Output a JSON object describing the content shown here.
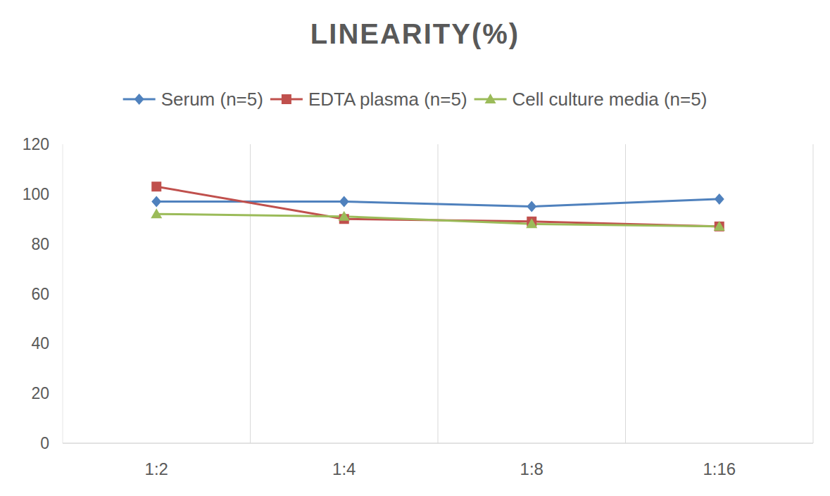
{
  "chart_data": {
    "type": "line",
    "title": "LINEARITY(%)",
    "categories": [
      "1:2",
      "1:4",
      "1:8",
      "1:16"
    ],
    "series": [
      {
        "name": "Serum (n=5)",
        "color": "#4f81bd",
        "marker": "diamond",
        "values": [
          97,
          97,
          95,
          98
        ]
      },
      {
        "name": "EDTA plasma (n=5)",
        "color": "#c0504d",
        "marker": "square",
        "values": [
          103,
          90,
          89,
          87
        ]
      },
      {
        "name": "Cell culture media (n=5)",
        "color": "#9bbb59",
        "marker": "triangle",
        "values": [
          92,
          91,
          88,
          87
        ]
      }
    ],
    "ylim": [
      0,
      120
    ],
    "yticks": [
      0,
      20,
      40,
      60,
      80,
      100,
      120
    ],
    "grid": true,
    "legend": "top"
  }
}
